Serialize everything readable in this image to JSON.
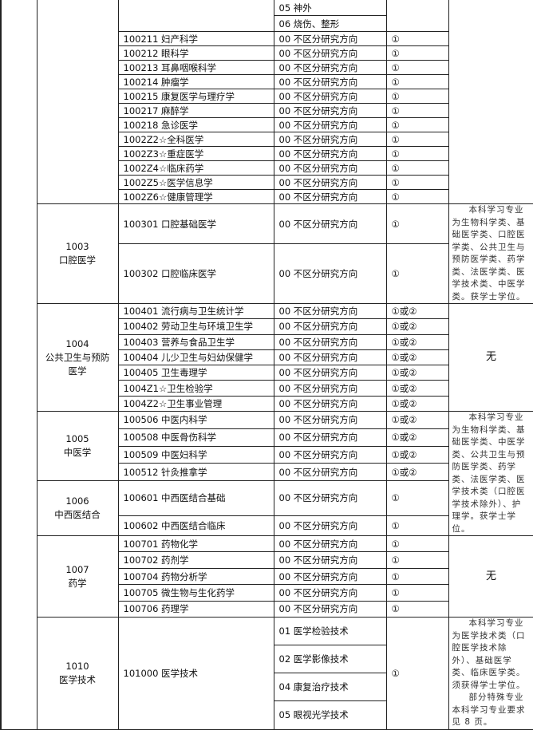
{
  "groups": [
    {
      "code": "",
      "name": "",
      "note": [],
      "majors": [
        {
          "name": "",
          "directions": [
            "05 神外",
            "06 烧伤、整形"
          ],
          "exam": ""
        },
        {
          "name": "100211 妇产科学",
          "directions": [
            "00 不区分研究方向"
          ],
          "exam": "①"
        },
        {
          "name": "100212 眼科学",
          "directions": [
            "00 不区分研究方向"
          ],
          "exam": "①"
        },
        {
          "name": "100213 耳鼻咽喉科学",
          "directions": [
            "00 不区分研究方向"
          ],
          "exam": "①"
        },
        {
          "name": "100214 肿瘤学",
          "directions": [
            "00 不区分研究方向"
          ],
          "exam": "①"
        },
        {
          "name": "100215 康复医学与理疗学",
          "directions": [
            "00 不区分研究方向"
          ],
          "exam": "①"
        },
        {
          "name": "100217 麻醉学",
          "directions": [
            "00 不区分研究方向"
          ],
          "exam": "①"
        },
        {
          "name": "100218 急诊医学",
          "directions": [
            "00 不区分研究方向"
          ],
          "exam": "①"
        },
        {
          "name": "1002Z2☆全科医学",
          "directions": [
            "00 不区分研究方向"
          ],
          "exam": "①"
        },
        {
          "name": "1002Z3☆重症医学",
          "directions": [
            "00 不区分研究方向"
          ],
          "exam": "①"
        },
        {
          "name": "1002Z4☆临床药学",
          "directions": [
            "00 不区分研究方向"
          ],
          "exam": "①"
        },
        {
          "name": "1002Z5☆医学信息学",
          "directions": [
            "00 不区分研究方向"
          ],
          "exam": "①"
        },
        {
          "name": "1002Z6☆健康管理学",
          "directions": [
            "00 不区分研究方向"
          ],
          "exam": "①"
        }
      ]
    },
    {
      "code": "1003",
      "name": "口腔医学",
      "note": [
        "本科学习专业为生物科学类、基础医学类、口腔医学类、公共卫生与预防医学类、药学类、法医学类、医学技术类、中医学类。获学士学位。"
      ],
      "majors": [
        {
          "name": "100301 口腔基础医学",
          "directions": [
            "00 不区分研究方向"
          ],
          "exam": "①"
        },
        {
          "name": "100302 口腔临床医学",
          "directions": [
            "00 不区分研究方向"
          ],
          "exam": "①"
        }
      ]
    },
    {
      "code": "1004",
      "name": "公共卫生与预防医学",
      "note": [
        "无"
      ],
      "majors": [
        {
          "name": "100401 流行病与卫生统计学",
          "directions": [
            "00 不区分研究方向"
          ],
          "exam": "①或②"
        },
        {
          "name": "100402 劳动卫生与环境卫生学",
          "directions": [
            "00 不区分研究方向"
          ],
          "exam": "①或②"
        },
        {
          "name": "100403 营养与食品卫生学",
          "directions": [
            "00 不区分研究方向"
          ],
          "exam": "①或②"
        },
        {
          "name": "100404 儿少卫生与妇幼保健学",
          "directions": [
            "00 不区分研究方向"
          ],
          "exam": "①或②"
        },
        {
          "name": "100405 卫生毒理学",
          "directions": [
            "00 不区分研究方向"
          ],
          "exam": "①或②"
        },
        {
          "name": "1004Z1☆卫生检验学",
          "directions": [
            "00 不区分研究方向"
          ],
          "exam": "①或②"
        },
        {
          "name": "1004Z2☆卫生事业管理",
          "directions": [
            "00 不区分研究方向"
          ],
          "exam": "①或②"
        }
      ]
    },
    {
      "code": "1005",
      "name": "中医学",
      "note": [
        "本科学习专业为生物科学类、基础医学类、中医学类、公共卫生与预防医学类、药学类、法医学类、医学技术类（口腔医学技术除外）、护理学。获学士学位。"
      ],
      "majors": [
        {
          "name": "100506 中医内科学",
          "directions": [
            "00 不区分研究方向"
          ],
          "exam": "①或②"
        },
        {
          "name": "100508 中医骨伤科学",
          "directions": [
            "00 不区分研究方向"
          ],
          "exam": "①或②"
        },
        {
          "name": "100509 中医妇科学",
          "directions": [
            "00 不区分研究方向"
          ],
          "exam": "①或②"
        },
        {
          "name": "100512 针灸推拿学",
          "directions": [
            "00 不区分研究方向"
          ],
          "exam": "①或②"
        }
      ]
    },
    {
      "code": "1006",
      "name": "中西医结合",
      "note": [],
      "majors": [
        {
          "name": "100601 中西医结合基础",
          "directions": [
            "00 不区分研究方向"
          ],
          "exam": "①"
        },
        {
          "name": "100602 中西医结合临床",
          "directions": [
            "00 不区分研究方向"
          ],
          "exam": "①"
        }
      ]
    },
    {
      "code": "1007",
      "name": "药学",
      "note": [
        "无"
      ],
      "majors": [
        {
          "name": "100701 药物化学",
          "directions": [
            "00 不区分研究方向"
          ],
          "exam": "①"
        },
        {
          "name": "100702 药剂学",
          "directions": [
            "00 不区分研究方向"
          ],
          "exam": "①"
        },
        {
          "name": "100704 药物分析学",
          "directions": [
            "00 不区分研究方向"
          ],
          "exam": "①"
        },
        {
          "name": "100705 微生物与生化药学",
          "directions": [
            "00 不区分研究方向"
          ],
          "exam": "①"
        },
        {
          "name": "100706 药理学",
          "directions": [
            "00 不区分研究方向"
          ],
          "exam": "①"
        }
      ]
    },
    {
      "code": "1010",
      "name": "医学技术",
      "note": [
        "本科学习专业为医学技术类（口腔医学技术除外）、基础医学类、临床医学类。须获得学士学位。",
        "部分特殊专业本科学习专业要求见 8 页。"
      ],
      "majors": [
        {
          "name": "101000 医学技术",
          "directions": [
            "01 医学检验技术",
            "02 医学影像技术",
            "04 康复治疗技术",
            "05 眼视光学技术"
          ],
          "exam": "①"
        }
      ]
    }
  ]
}
